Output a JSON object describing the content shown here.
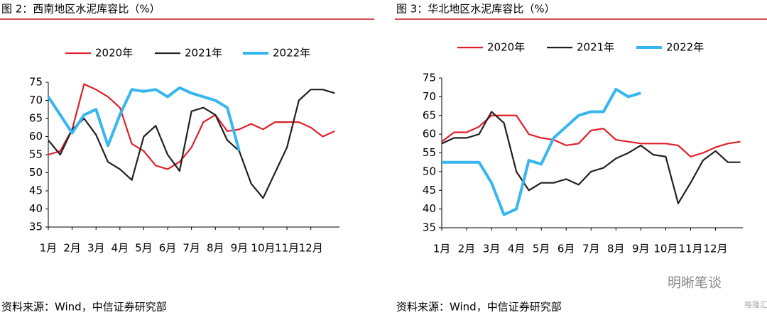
{
  "chart_data": [
    {
      "type": "line",
      "title": "图 2：西南地区水泥库容比（%）",
      "source": "资料来源：Wind，中信证券研究部",
      "x": [
        1,
        1.5,
        2,
        2.5,
        3,
        3.5,
        4,
        4.5,
        5,
        5.5,
        6,
        6.5,
        7,
        7.5,
        8,
        8.5,
        9,
        9.5,
        10,
        10.5,
        11,
        11.5,
        12,
        12.5,
        13
      ],
      "xlim": [
        1,
        13.2
      ],
      "xticks": [
        {
          "value": 1,
          "label": "1月"
        },
        {
          "value": 2,
          "label": "2月"
        },
        {
          "value": 3,
          "label": "3月"
        },
        {
          "value": 4,
          "label": "4月"
        },
        {
          "value": 5,
          "label": "5月"
        },
        {
          "value": 6,
          "label": "6月"
        },
        {
          "value": 7,
          "label": "7月"
        },
        {
          "value": 8,
          "label": "8月"
        },
        {
          "value": 9,
          "label": "9月"
        },
        {
          "value": 10,
          "label": "10月"
        },
        {
          "value": 11,
          "label": "11月"
        },
        {
          "value": 12,
          "label": "12月"
        }
      ],
      "ylim": [
        35,
        75
      ],
      "yticks": [
        35,
        40,
        45,
        50,
        55,
        60,
        65,
        70,
        75
      ],
      "grid": false,
      "legend": "top",
      "series": [
        {
          "name": "2020年",
          "color": "#e0202a",
          "values": [
            55,
            56,
            62,
            74.5,
            73,
            71,
            68,
            58,
            56,
            52,
            51,
            53,
            57,
            64,
            66,
            61.5,
            62,
            63.5,
            62,
            64,
            64,
            64,
            62.5,
            60,
            61.5
          ]
        },
        {
          "name": "2021年",
          "color": "#231f20",
          "values": [
            59,
            55,
            62,
            65,
            60.5,
            53,
            51,
            48,
            60,
            63,
            55,
            50.5,
            67,
            68,
            66,
            59,
            56,
            47,
            43,
            50,
            57,
            70,
            73,
            73,
            72
          ]
        },
        {
          "name": "2022年",
          "color": "#38b6f0",
          "values": [
            71,
            66,
            61,
            66,
            67.5,
            57.5,
            66,
            73,
            72.5,
            73,
            71,
            73.5,
            72,
            71,
            70,
            68,
            56,
            null,
            null,
            null,
            null,
            null,
            null,
            null,
            null
          ]
        }
      ]
    },
    {
      "type": "line",
      "title": "图 3：华北地区水泥库容比（%）",
      "source": "资料来源：Wind，中信证券研究部",
      "x": [
        1,
        1.5,
        2,
        2.5,
        3,
        3.5,
        4,
        4.5,
        5,
        5.5,
        6,
        6.5,
        7,
        7.5,
        8,
        8.5,
        9,
        9.5,
        10,
        10.5,
        11,
        11.5,
        12,
        12.5,
        13
      ],
      "xlim": [
        1,
        13.1
      ],
      "xticks": [
        {
          "value": 1,
          "label": "1月"
        },
        {
          "value": 2,
          "label": "2月"
        },
        {
          "value": 3,
          "label": "3月"
        },
        {
          "value": 4,
          "label": "4月"
        },
        {
          "value": 5,
          "label": "5月"
        },
        {
          "value": 6,
          "label": "6月"
        },
        {
          "value": 7,
          "label": "7月"
        },
        {
          "value": 8,
          "label": "8月"
        },
        {
          "value": 9,
          "label": "9月"
        },
        {
          "value": 10,
          "label": "10月"
        },
        {
          "value": 11,
          "label": "11月"
        },
        {
          "value": 12,
          "label": "12月"
        }
      ],
      "ylim": [
        35,
        75
      ],
      "yticks": [
        35,
        40,
        45,
        50,
        55,
        60,
        65,
        70,
        75
      ],
      "grid": false,
      "legend": "top",
      "series": [
        {
          "name": "2020年",
          "color": "#e0202a",
          "values": [
            58,
            60.5,
            60.5,
            62,
            65,
            65,
            65,
            60,
            59,
            58.5,
            57,
            57.5,
            61,
            61.5,
            58.5,
            58,
            57.5,
            57.5,
            57.5,
            57,
            54,
            55,
            56.5,
            57.5,
            58
          ]
        },
        {
          "name": "2021年",
          "color": "#231f20",
          "values": [
            57.5,
            59,
            59,
            60,
            66,
            63,
            50,
            45,
            47,
            47,
            48,
            46.5,
            50,
            51,
            53.5,
            55,
            57,
            54.5,
            54,
            41.5,
            47,
            53,
            55.5,
            52.5,
            52.5
          ]
        },
        {
          "name": "2022年",
          "color": "#38b6f0",
          "values": [
            52.5,
            52.5,
            52.5,
            52.5,
            47,
            38.5,
            40,
            53,
            52,
            59,
            62,
            65,
            66,
            66,
            72,
            70,
            71,
            null,
            null,
            null,
            null,
            null,
            null,
            null,
            null
          ]
        }
      ]
    }
  ],
  "watermark": "明晰笔谈",
  "logo": "格隆汇"
}
